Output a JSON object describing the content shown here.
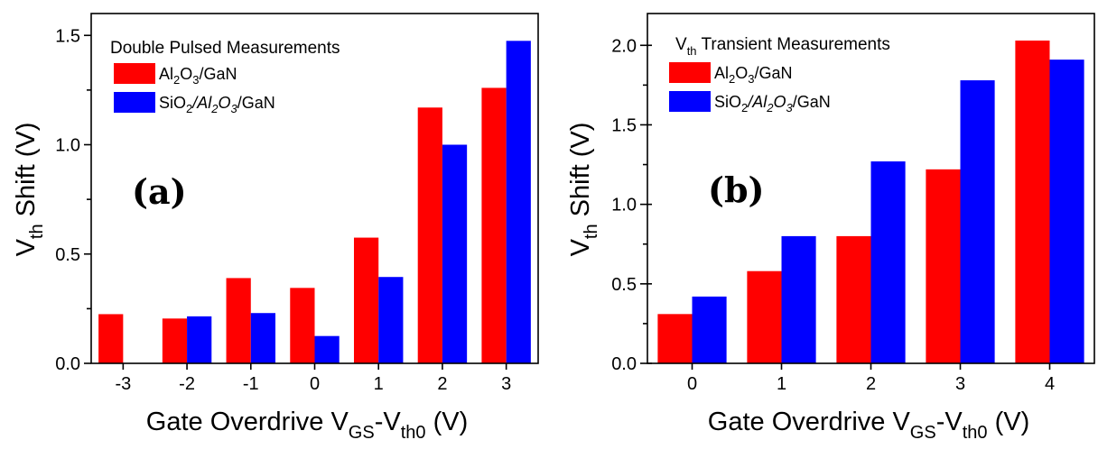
{
  "chart_data": [
    {
      "type": "bar",
      "panel_label": "(a)",
      "title": "Double Pulsed Measurements",
      "xlabel": {
        "main": "Gate Overdrive V",
        "sub1": "GS",
        "mid": "-V",
        "sub2": "th0",
        "end": " (V)"
      },
      "ylabel": {
        "main": "V",
        "sub": "th",
        "end": " Shift (V)"
      },
      "categories": [
        "-3",
        "-2",
        "-1",
        "0",
        "1",
        "2",
        "3"
      ],
      "ylim": [
        0,
        1.6
      ],
      "yticks": [
        "0.0",
        "0.5",
        "1.0",
        "1.5"
      ],
      "ytick_values": [
        0,
        0.5,
        1.0,
        1.5
      ],
      "legend_position": "top-left",
      "series": [
        {
          "name": "Al2O3/GaN",
          "legend": [
            {
              "t": "Al",
              "s": "n"
            },
            {
              "t": "2",
              "s": "sub"
            },
            {
              "t": "O",
              "s": "n"
            },
            {
              "t": "3",
              "s": "sub"
            },
            {
              "t": "/GaN",
              "s": "n"
            }
          ],
          "color": "#ff0000",
          "values": [
            0.225,
            0.205,
            0.39,
            0.345,
            0.575,
            1.17,
            1.26
          ]
        },
        {
          "name": "SiO2/Al2O3/GaN",
          "legend": [
            {
              "t": "SiO",
              "s": "n"
            },
            {
              "t": "2",
              "s": "sub"
            },
            {
              "t": "/Al",
              "s": "i"
            },
            {
              "t": "2",
              "s": "isub"
            },
            {
              "t": "O",
              "s": "i"
            },
            {
              "t": "3",
              "s": "isub"
            },
            {
              "t": "/GaN",
              "s": "n"
            }
          ],
          "color": "#0000ff",
          "values": [
            null,
            0.215,
            0.23,
            0.125,
            0.395,
            1.0,
            1.475
          ]
        }
      ]
    },
    {
      "type": "bar",
      "panel_label": "(b)",
      "title": {
        "main": "V",
        "sub": "th",
        "end": " Transient Measurements"
      },
      "xlabel": {
        "main": "Gate Overdrive V",
        "sub1": "GS",
        "mid": "-V",
        "sub2": "th0",
        "end": " (V)"
      },
      "ylabel": {
        "main": "V",
        "sub": "th",
        "end": " Shift (V)"
      },
      "categories": [
        "0",
        "1",
        "2",
        "3",
        "4"
      ],
      "ylim": [
        0,
        2.2
      ],
      "yticks": [
        "0.0",
        "0.5",
        "1.0",
        "1.5",
        "2.0"
      ],
      "ytick_values": [
        0,
        0.5,
        1.0,
        1.5,
        2.0
      ],
      "legend_position": "top-left",
      "series": [
        {
          "name": "Al2O3/GaN",
          "legend": [
            {
              "t": "Al",
              "s": "n"
            },
            {
              "t": "2",
              "s": "sub"
            },
            {
              "t": "O",
              "s": "n"
            },
            {
              "t": "3",
              "s": "sub"
            },
            {
              "t": "/GaN",
              "s": "n"
            }
          ],
          "color": "#ff0000",
          "values": [
            0.31,
            0.58,
            0.8,
            1.22,
            2.03
          ]
        },
        {
          "name": "SiO2/Al2O3/GaN",
          "legend": [
            {
              "t": "SiO",
              "s": "n"
            },
            {
              "t": "2",
              "s": "sub"
            },
            {
              "t": "/Al",
              "s": "i"
            },
            {
              "t": "2",
              "s": "isub"
            },
            {
              "t": "O",
              "s": "i"
            },
            {
              "t": "3",
              "s": "isub"
            },
            {
              "t": "/GaN",
              "s": "n"
            }
          ],
          "color": "#0000ff",
          "values": [
            0.42,
            0.8,
            1.27,
            1.78,
            1.91
          ]
        }
      ]
    }
  ]
}
